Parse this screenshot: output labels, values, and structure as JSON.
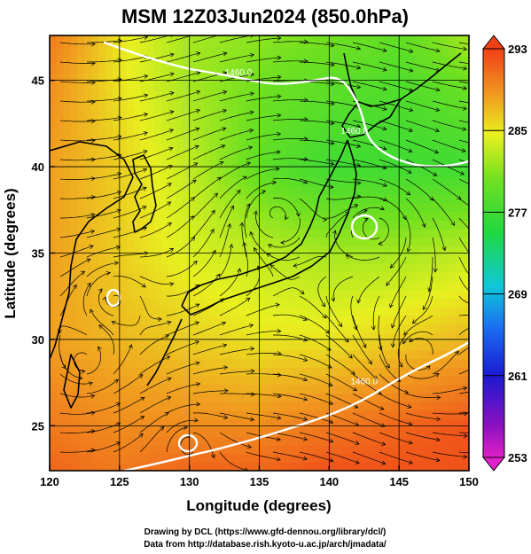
{
  "chart_data": {
    "type": "heatmap",
    "title": "MSM 12Z03Jun2024 (850.0hPa)",
    "xlabel": "Longitude (degrees)",
    "ylabel": "Latitude  (degrees)",
    "xlim": [
      120,
      150
    ],
    "ylim": [
      22.4,
      47.6
    ],
    "x_ticks": [
      120,
      125,
      130,
      135,
      140,
      145,
      150
    ],
    "y_ticks": [
      25,
      30,
      35,
      40,
      45
    ],
    "grid": true,
    "colorbar": {
      "min": 253,
      "max": 293,
      "ticks": [
        253,
        261,
        269,
        277,
        285,
        293
      ],
      "placement": "right"
    },
    "contour_labels": [
      {
        "text": "1460.0",
        "lon": 133.5,
        "lat": 45.3
      },
      {
        "text": "1460.0",
        "lon": 141.8,
        "lat": 41.9
      },
      {
        "text": "1460.0",
        "lon": 142.5,
        "lat": 27.4
      }
    ],
    "temperature_field_K": {
      "lon": [
        120,
        125,
        130,
        135,
        140,
        145,
        150
      ],
      "lat": [
        47.5,
        45,
        40,
        35,
        30,
        25,
        22.5
      ],
      "values": [
        [
          290,
          285,
          282,
          281,
          280,
          279,
          282
        ],
        [
          289,
          285,
          282,
          280,
          279,
          278,
          280
        ],
        [
          288,
          286,
          283,
          279,
          277,
          277,
          277
        ],
        [
          288,
          286,
          284,
          283,
          282,
          282,
          283
        ],
        [
          288,
          287,
          286,
          285,
          285,
          286,
          287
        ],
        [
          290,
          289,
          289,
          289,
          290,
          291,
          292
        ],
        [
          291,
          290,
          291,
          291,
          292,
          292,
          292
        ]
      ]
    }
  },
  "credits": {
    "line1": "Drawing by DCL (https://www.gfd-dennou.org/library/dcl/)",
    "line2": "Data from http://database.rish.kyoto-u.ac.jp/arch/jmadata/"
  }
}
